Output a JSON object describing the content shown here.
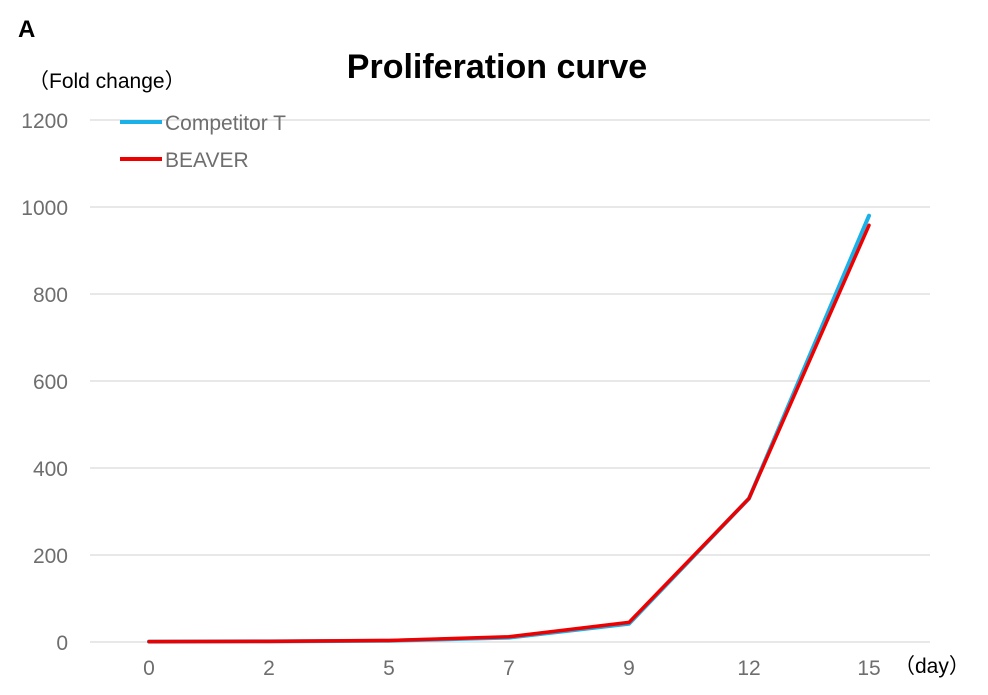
{
  "panel_label": "A",
  "chart_data": {
    "type": "line",
    "title": "Proliferation curve",
    "ylabel": "（Fold change）",
    "xlabel": "（day）",
    "x": [
      "0",
      "2",
      "5",
      "7",
      "9",
      "12",
      "15"
    ],
    "ylim": [
      0,
      1200
    ],
    "yticks": [
      0,
      200,
      400,
      600,
      800,
      1000,
      1200
    ],
    "grid": true,
    "legend_position": "top-left",
    "series": [
      {
        "name": "Competitor T",
        "color": "#1ab0e8",
        "values": [
          1,
          1.5,
          3,
          10,
          42,
          330,
          980
        ]
      },
      {
        "name": "BEAVER",
        "color": "#ee0000",
        "values": [
          1,
          1.5,
          3.5,
          12,
          45,
          330,
          958
        ]
      }
    ]
  }
}
